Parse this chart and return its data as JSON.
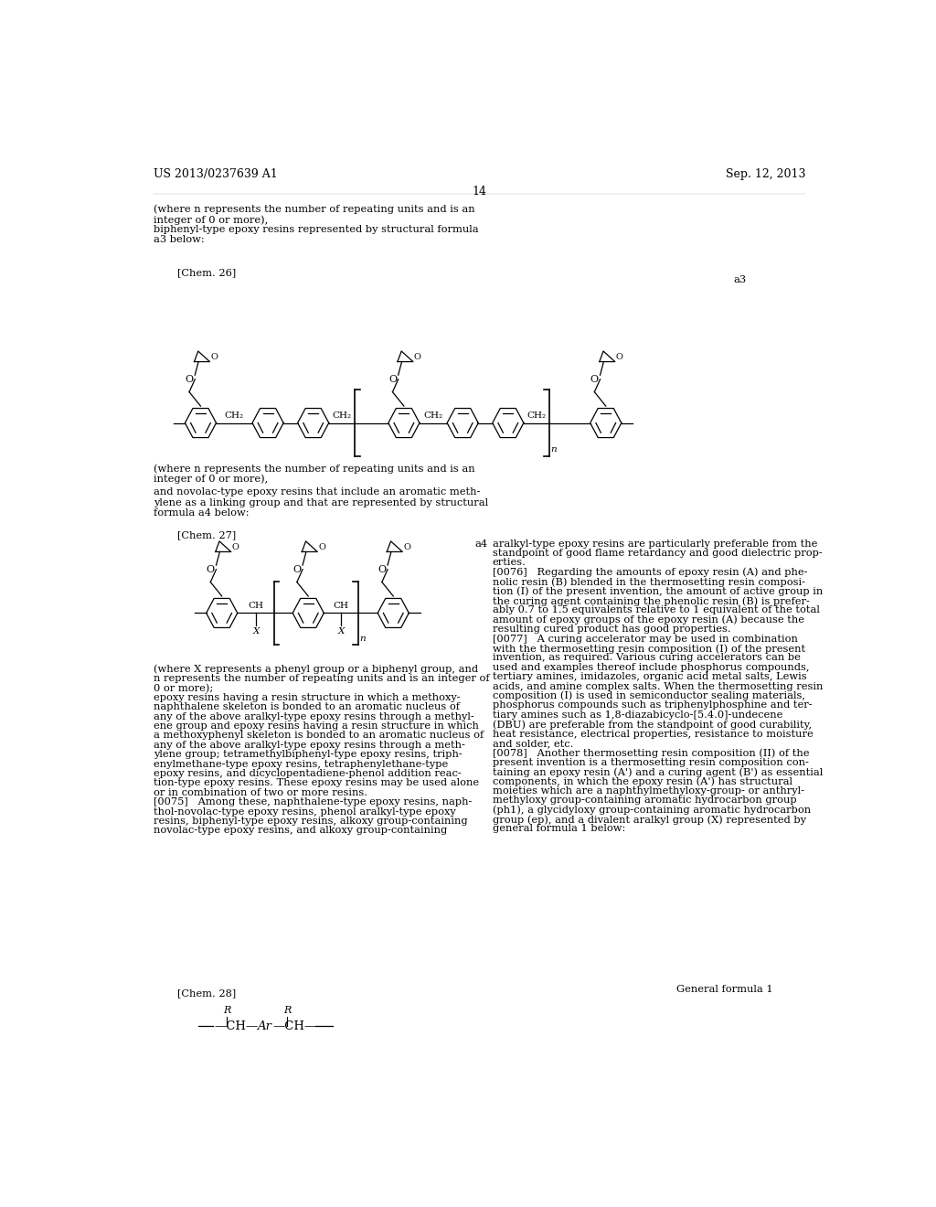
{
  "background_color": "#ffffff",
  "header_left": "US 2013/0237639 A1",
  "header_right": "Sep. 12, 2013",
  "page_number": "14",
  "top_text_left": [
    "(where n represents the number of repeating units and is an",
    "integer of 0 or more),",
    "biphenyl-type epoxy resins represented by structural formula",
    "a3 below:"
  ],
  "chem26_label": "[Chem. 26]",
  "chem26_tag": "a3",
  "chem27_label": "[Chem. 27]",
  "chem27_tag": "a4",
  "chem28_label": "[Chem. 28]",
  "chem28_tag": "General formula 1",
  "mid_text_left_1": [
    "(where n represents the number of repeating units and is an",
    "integer of 0 or more),"
  ],
  "mid_text_left_2": [
    "and novolac-type epoxy resins that include an aromatic meth-",
    "ylene as a linking group and that are represented by structural",
    "formula a4 below:"
  ],
  "bottom_text_left": [
    "(where X represents a phenyl group or a biphenyl group, and",
    "n represents the number of repeating units and is an integer of",
    "0 or more);",
    "epoxy resins having a resin structure in which a methoxy-",
    "naphthalene skeleton is bonded to an aromatic nucleus of",
    "any of the above aralkyl-type epoxy resins through a methyl-",
    "ene group and epoxy resins having a resin structure in which",
    "a methoxyphenyl skeleton is bonded to an aromatic nucleus of",
    "any of the above aralkyl-type epoxy resins through a meth-",
    "ylene group; tetramethylbiphenyl-type epoxy resins, triph-",
    "enylmethane-type epoxy resins, tetraphenylethane-type",
    "epoxy resins, and dicyclopentadiene-phenol addition reac-",
    "tion-type epoxy resins. These epoxy resins may be used alone",
    "or in combination of two or more resins.",
    "[0075]   Among these, naphthalene-type epoxy resins, naph-",
    "thol-novolac-type epoxy resins, phenol aralkyl-type epoxy",
    "resins, biphenyl-type epoxy resins, alkoxy group-containing",
    "novolac-type epoxy resins, and alkoxy group-containing"
  ],
  "right_col_text_top": [
    "aralkyl-type epoxy resins are particularly preferable from the",
    "standpoint of good flame retardancy and good dielectric prop-",
    "erties.",
    "[0076]   Regarding the amounts of epoxy resin (A) and phe-",
    "nolic resin (B) blended in the thermosetting resin composi-",
    "tion (I) of the present invention, the amount of active group in",
    "the curing agent containing the phenolic resin (B) is prefer-",
    "ably 0.7 to 1.5 equivalents relative to 1 equivalent of the total",
    "amount of epoxy groups of the epoxy resin (A) because the",
    "resulting cured product has good properties.",
    "[0077]   A curing accelerator may be used in combination",
    "with the thermosetting resin composition (I) of the present",
    "invention, as required. Various curing accelerators can be",
    "used and examples thereof include phosphorus compounds,",
    "tertiary amines, imidazoles, organic acid metal salts, Lewis",
    "acids, and amine complex salts. When the thermosetting resin",
    "composition (I) is used in semiconductor sealing materials,",
    "phosphorus compounds such as triphenylphosphine and ter-",
    "tiary amines such as 1,8-diazabicyclo-[5.4.0]-undecene",
    "(DBU) are preferable from the standpoint of good curability,",
    "heat resistance, electrical properties, resistance to moisture",
    "and solder, etc.",
    "[0078]   Another thermosetting resin composition (II) of the",
    "present invention is a thermosetting resin composition con-",
    "taining an epoxy resin (A') and a curing agent (B') as essential",
    "components, in which the epoxy resin (A') has structural",
    "moieties which are a naphthylmethyloxy-group- or anthryl-",
    "methyloxy group-containing aromatic hydrocarbon group",
    "(ph1), a glycidyloxy group-containing aromatic hydrocarbon",
    "group (ep), and a divalent aralkyl group (X) represented by",
    "general formula 1 below:"
  ]
}
